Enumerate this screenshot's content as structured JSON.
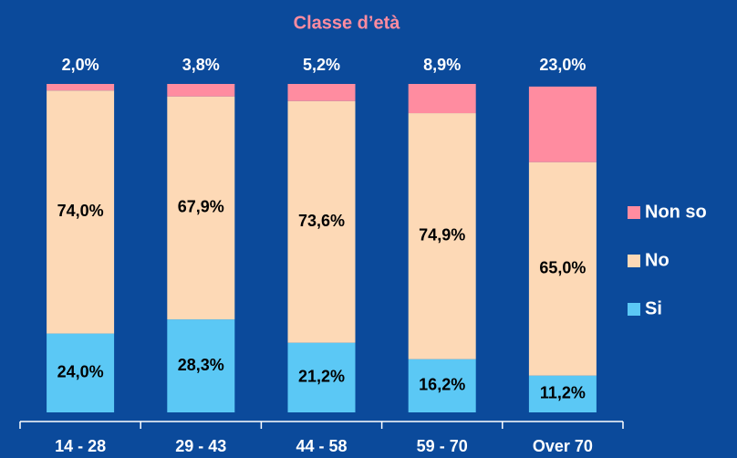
{
  "chart_data": {
    "type": "stacked_bar",
    "title": "Classe d’età",
    "categories": [
      "14 - 28",
      "29 - 43",
      "44 - 58",
      "59 - 70",
      "Over 70"
    ],
    "series": [
      {
        "name": "Si",
        "color": "#5bc8f5",
        "values": [
          24.0,
          28.3,
          21.2,
          16.2,
          11.2
        ],
        "value_labels": [
          "24,0%",
          "28,3%",
          "21,2%",
          "16,2%",
          "11,2%"
        ]
      },
      {
        "name": "No",
        "color": "#fdd9b6",
        "values": [
          74.0,
          67.9,
          73.6,
          74.9,
          65.0
        ],
        "value_labels": [
          "74,0%",
          "67,9%",
          "73,6%",
          "74,9%",
          "65,0%"
        ]
      },
      {
        "name": "Non so",
        "color": "#ff8ca0",
        "values": [
          2.0,
          3.8,
          5.2,
          8.9,
          23.0
        ],
        "value_labels": [
          "2,0%",
          "3,8%",
          "5,2%",
          "8,9%",
          "23,0%"
        ]
      }
    ],
    "ylim": [
      0,
      100
    ],
    "legend": "right"
  }
}
